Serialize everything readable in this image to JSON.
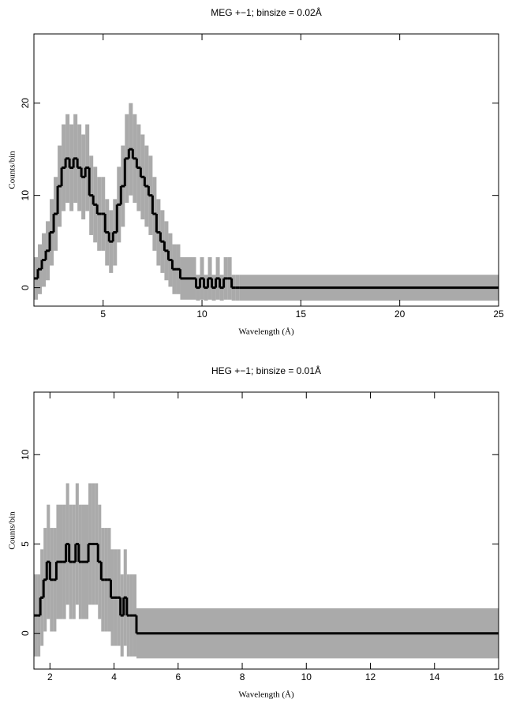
{
  "chart_data": [
    {
      "type": "histogram",
      "title": "MEG +−1; binsize = 0.02Å",
      "x_label": "Wavelength (Å)",
      "y_label": "Counts/bin",
      "bins": [
        1.5,
        1.7,
        1.9,
        2.1,
        2.3,
        2.5,
        2.7,
        2.9,
        3.1,
        3.3,
        3.5,
        3.7,
        3.9,
        4.1,
        4.3,
        4.5,
        4.7,
        4.9,
        5.1,
        5.3,
        5.5,
        5.7,
        5.9,
        6.1,
        6.3,
        6.5,
        6.7,
        6.9,
        7.1,
        7.3,
        7.5,
        7.7,
        7.9,
        8.1,
        8.3,
        8.5,
        8.7,
        8.9,
        9.1,
        9.3,
        9.5,
        9.7,
        9.9,
        10.1,
        10.3,
        10.5,
        10.7,
        10.9,
        11.1,
        11.3,
        11.5,
        11.7,
        11.9,
        25
      ],
      "values": [
        1,
        2,
        3,
        4,
        6,
        8,
        11,
        13,
        14,
        13,
        14,
        13,
        12,
        13,
        10,
        9,
        8,
        8,
        6,
        5,
        6,
        9,
        11,
        14,
        15,
        14,
        13,
        12,
        11,
        10,
        8,
        6,
        5,
        4,
        3,
        2,
        2,
        1,
        1,
        1,
        1,
        0,
        1,
        0,
        1,
        0,
        1,
        0,
        1,
        1,
        0,
        0,
        0
      ],
      "errors": [
        2.3,
        2.7,
        2.9,
        3.2,
        3.6,
        4.0,
        4.4,
        4.7,
        4.8,
        4.7,
        4.8,
        4.7,
        4.6,
        4.7,
        4.3,
        4.1,
        4.0,
        4.0,
        3.6,
        3.4,
        3.6,
        4.1,
        4.4,
        4.8,
        5.0,
        4.8,
        4.7,
        4.6,
        4.4,
        4.3,
        4.0,
        3.6,
        3.4,
        3.2,
        2.9,
        2.7,
        2.7,
        2.3,
        2.3,
        2.3,
        2.3,
        1.4,
        2.3,
        1.4,
        2.3,
        1.4,
        2.3,
        1.4,
        2.3,
        2.3,
        1.4,
        1.4,
        1.4
      ],
      "color": "#000000",
      "error_color": "#aaaaaa",
      "xlim": [
        1.5,
        25
      ],
      "xticks": [
        5,
        10,
        15,
        20,
        25
      ],
      "ylim": [
        -2,
        27.5
      ],
      "yticks": [
        0,
        10,
        20
      ]
    },
    {
      "type": "histogram",
      "title": "HEG +−1; binsize = 0.01Å",
      "x_label": "Wavelength (Å)",
      "y_label": "Counts/bin",
      "bins": [
        1.5,
        1.6,
        1.7,
        1.8,
        1.9,
        2.0,
        2.1,
        2.2,
        2.3,
        2.4,
        2.5,
        2.6,
        2.7,
        2.8,
        2.9,
        3.0,
        3.1,
        3.2,
        3.3,
        3.4,
        3.5,
        3.6,
        3.7,
        3.8,
        3.9,
        4.0,
        4.1,
        4.2,
        4.3,
        4.4,
        4.5,
        4.6,
        4.7,
        16
      ],
      "values": [
        1,
        1,
        2,
        3,
        4,
        3,
        3,
        4,
        4,
        4,
        5,
        4,
        4,
        5,
        4,
        4,
        4,
        5,
        5,
        5,
        4,
        3,
        3,
        3,
        2,
        2,
        2,
        1,
        2,
        1,
        1,
        1,
        0
      ],
      "errors": [
        2.3,
        2.3,
        2.7,
        2.9,
        3.2,
        2.9,
        2.9,
        3.2,
        3.2,
        3.2,
        3.4,
        3.2,
        3.2,
        3.4,
        3.2,
        3.2,
        3.2,
        3.4,
        3.4,
        3.4,
        3.2,
        2.9,
        2.9,
        2.9,
        2.7,
        2.7,
        2.7,
        2.3,
        2.7,
        2.3,
        2.3,
        2.3,
        1.4
      ],
      "color": "#000000",
      "error_color": "#aaaaaa",
      "xlim": [
        1.5,
        16
      ],
      "xticks": [
        2,
        4,
        6,
        8,
        10,
        12,
        14,
        16
      ],
      "ylim": [
        -2,
        13.5
      ],
      "yticks": [
        0,
        5,
        10
      ]
    }
  ]
}
